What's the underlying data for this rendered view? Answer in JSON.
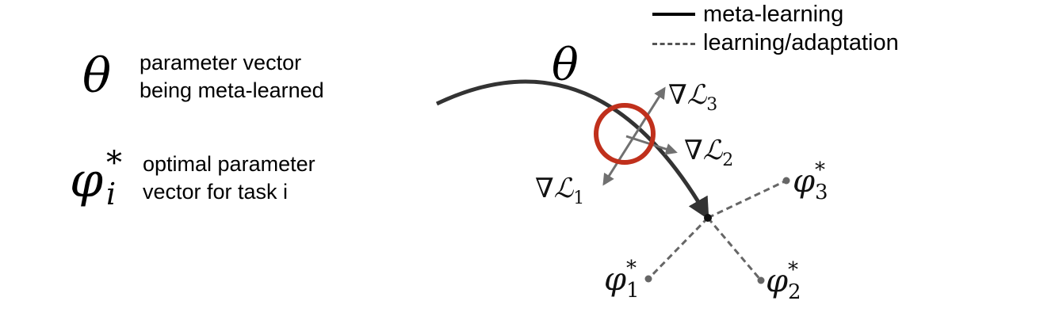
{
  "legend": {
    "solid_label": "meta-learning",
    "dashed_label": "learning/adaptation"
  },
  "key": {
    "theta_symbol": "θ",
    "theta_desc_line1": "parameter vector",
    "theta_desc_line2": "being meta-learned",
    "phi_symbol": "φ",
    "phi_sup": "*",
    "phi_sub": "i",
    "phi_desc_line1": "optimal parameter",
    "phi_desc_line2": "vector for task i"
  },
  "diagram": {
    "theta_label": "θ",
    "grad_symbol": "∇",
    "loss_symbol": "ℒ",
    "grad1_sub": "1",
    "grad2_sub": "2",
    "grad3_sub": "3",
    "phi_symbol": "φ",
    "phi_sup": "*",
    "phi1_sub": "1",
    "phi2_sub": "2",
    "phi3_sub": "3"
  },
  "colors": {
    "meta_path": "#333333",
    "gradient_arrows": "#707070",
    "adaptation_lines": "#666666",
    "highlight_circle": "#c0301c"
  }
}
